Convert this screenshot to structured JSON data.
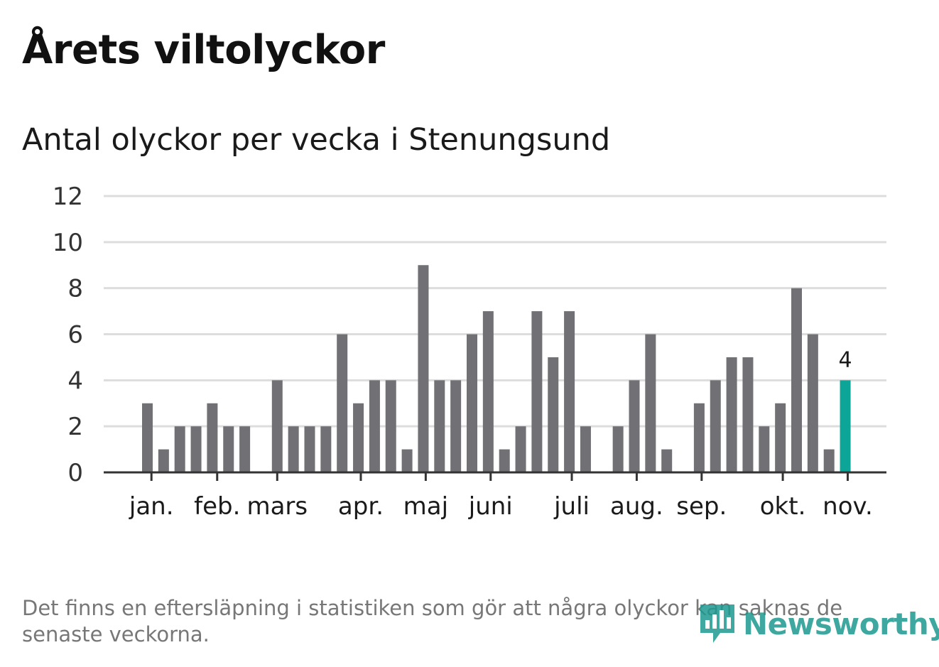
{
  "title": "Årets viltolyckor",
  "subtitle": "Antal olyckor per vecka i Stenungsund",
  "footnote": "Det finns en eftersläpning i statistiken som gör att några olyckor kan saknas de senaste veckorna.",
  "logo": {
    "text": "Newsworthy",
    "icon": "newsworthy-logo-icon"
  },
  "colors": {
    "bar": "#717075",
    "highlight": "#0da597",
    "grid": "#dddddd",
    "axis": "#333333",
    "brand": "#1d9a90"
  },
  "chart_data": {
    "type": "bar",
    "title": "Antal olyckor per vecka i Stenungsund",
    "xlabel": "",
    "ylabel": "",
    "ylim": [
      0,
      12
    ],
    "yticks": [
      0,
      2,
      4,
      6,
      8,
      10,
      12
    ],
    "grid": true,
    "weeks": [
      1,
      2,
      3,
      4,
      5,
      6,
      7,
      8,
      9,
      10,
      11,
      12,
      13,
      14,
      15,
      16,
      17,
      18,
      19,
      20,
      21,
      22,
      23,
      24,
      25,
      26,
      27,
      28,
      29,
      30,
      31,
      32,
      33,
      34,
      35,
      36,
      37,
      38,
      39,
      40,
      41,
      42,
      43,
      44
    ],
    "values": [
      3,
      1,
      2,
      2,
      3,
      2,
      2,
      0,
      4,
      2,
      2,
      2,
      6,
      3,
      4,
      4,
      1,
      9,
      4,
      4,
      6,
      7,
      1,
      2,
      7,
      5,
      7,
      2,
      0,
      2,
      4,
      6,
      1,
      0,
      3,
      4,
      5,
      5,
      2,
      3,
      8,
      6,
      1,
      4
    ],
    "highlight_index": 43,
    "highlight_label": "4",
    "month_labels": [
      {
        "label": "jan.",
        "pos": 0.25
      },
      {
        "label": "feb.",
        "pos": 4.3
      },
      {
        "label": "mars",
        "pos": 8.0
      },
      {
        "label": "apr.",
        "pos": 13.15
      },
      {
        "label": "maj",
        "pos": 17.15
      },
      {
        "label": "juni",
        "pos": 21.15
      },
      {
        "label": "juli",
        "pos": 26.15
      },
      {
        "label": "aug.",
        "pos": 30.15
      },
      {
        "label": "sep.",
        "pos": 34.15
      },
      {
        "label": "okt.",
        "pos": 39.15
      },
      {
        "label": "nov.",
        "pos": 43.15
      }
    ]
  }
}
